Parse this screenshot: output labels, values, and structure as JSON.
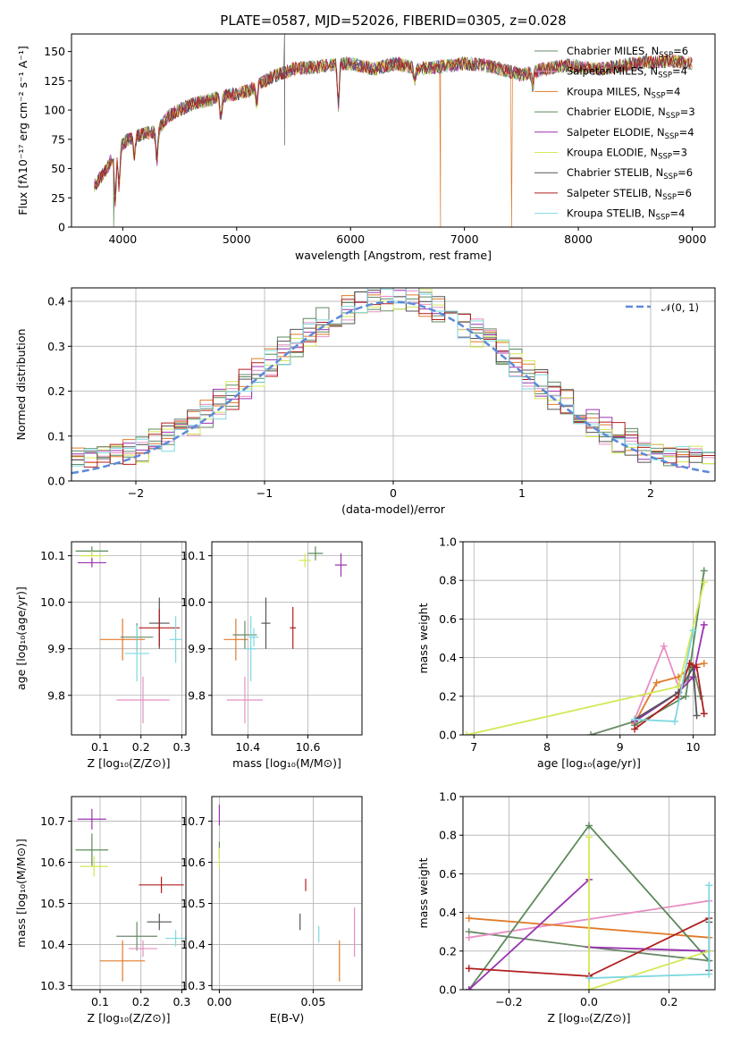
{
  "colors": [
    "#6a8a68",
    "#e78fc4",
    "#e07b2a",
    "#5c8a5c",
    "#9932b0",
    "#d4e857",
    "#555555",
    "#b01e1e",
    "#7fd8e0"
  ],
  "chart_data": [
    {
      "id": "spectrum",
      "type": "line",
      "title": "PLATE=0587, MJD=52026, FIBERID=0305, z=0.028",
      "xlabel": "wavelength [Angstrom, rest frame]",
      "ylabel": "Flux [fλ10⁻¹⁷ erg cm⁻² s⁻¹ A⁻¹]",
      "xlim": [
        3550,
        9200
      ],
      "ylim": [
        0,
        165
      ],
      "xticks": [
        4000,
        5000,
        6000,
        7000,
        8000,
        9000
      ],
      "yticks": [
        0,
        25,
        50,
        75,
        100,
        125,
        150
      ],
      "legend_position": "top-right",
      "series": [
        {
          "name": "Chabrier MILES, N",
          "sub": "SSP",
          "suffix": "=6",
          "color_index": 0
        },
        {
          "name": "Salpeter MILES, N",
          "sub": "SSP",
          "suffix": "=4",
          "color_index": 1
        },
        {
          "name": "Kroupa MILES, N",
          "sub": "SSP",
          "suffix": "=4",
          "color_index": 2
        },
        {
          "name": "Chabrier ELODIE, N",
          "sub": "SSP",
          "suffix": "=3",
          "color_index": 3
        },
        {
          "name": "Salpeter ELODIE, N",
          "sub": "SSP",
          "suffix": "=4",
          "color_index": 4
        },
        {
          "name": "Kroupa ELODIE, N",
          "sub": "SSP",
          "suffix": "=3",
          "color_index": 5
        },
        {
          "name": "Chabrier STELIB, N",
          "sub": "SSP",
          "suffix": "=6",
          "color_index": 6
        },
        {
          "name": "Salpeter STELIB, N",
          "sub": "SSP",
          "suffix": "=6",
          "color_index": 7
        },
        {
          "name": "Kroupa STELIB, N",
          "sub": "SSP",
          "suffix": "=4",
          "color_index": 8
        }
      ],
      "continuum": [
        [
          3750,
          35
        ],
        [
          3850,
          48
        ],
        [
          3950,
          68
        ],
        [
          4100,
          78
        ],
        [
          4300,
          82
        ],
        [
          4400,
          95
        ],
        [
          4600,
          105
        ],
        [
          4900,
          112
        ],
        [
          5100,
          116
        ],
        [
          5300,
          128
        ],
        [
          5500,
          135
        ],
        [
          5800,
          138
        ],
        [
          6000,
          140
        ],
        [
          6200,
          135
        ],
        [
          6400,
          140
        ],
        [
          6600,
          135
        ],
        [
          6800,
          137
        ],
        [
          7000,
          140
        ],
        [
          7200,
          138
        ],
        [
          7500,
          130
        ],
        [
          7700,
          135
        ],
        [
          7900,
          138
        ],
        [
          8200,
          135
        ],
        [
          8500,
          140
        ],
        [
          8800,
          142
        ],
        [
          9000,
          140
        ]
      ],
      "absorption_features": [
        [
          3934,
          42
        ],
        [
          3968,
          35
        ],
        [
          4102,
          20
        ],
        [
          4300,
          25
        ],
        [
          4861,
          18
        ],
        [
          5175,
          15
        ],
        [
          5893,
          35
        ],
        [
          6563,
          10
        ],
        [
          7600,
          12
        ]
      ],
      "drops_to_zero": [
        3920,
        6790,
        7410
      ],
      "spikes": [
        [
          5420,
          70
        ]
      ]
    },
    {
      "id": "residuals",
      "type": "histogram",
      "xlabel": "(data-model)/error",
      "ylabel": "Normed distribution",
      "xlim": [
        -2.5,
        2.5
      ],
      "ylim": [
        0,
        0.43
      ],
      "xticks": [
        -2,
        -1,
        0,
        1,
        2
      ],
      "yticks": [
        0.0,
        0.1,
        0.2,
        0.3,
        0.4
      ],
      "legend_label": "𝒩(0, 1)",
      "legend_color": "#5b8ad8",
      "bin_width": 0.1
    },
    {
      "id": "age_vs_Z",
      "type": "errorbar",
      "xlabel": "Z [log₁₀(Z/Z⊙)]",
      "ylabel": "age  [log₁₀(age/yr)]",
      "xlim": [
        0.03,
        0.31
      ],
      "ylim": [
        9.715,
        10.13
      ],
      "xticks": [
        0.1,
        0.2,
        0.3
      ],
      "yticks": [
        9.8,
        9.9,
        10.0,
        10.1
      ],
      "points": [
        {
          "x": 0.08,
          "y": 10.11,
          "dx": 0.04,
          "dy": 0.01,
          "c": 3
        },
        {
          "x": 0.08,
          "y": 10.1,
          "dx": 0.03,
          "dy": 0.01,
          "c": 5
        },
        {
          "x": 0.08,
          "y": 10.085,
          "dx": 0.035,
          "dy": 0.01,
          "c": 4
        },
        {
          "x": 0.155,
          "y": 9.92,
          "dx": 0.055,
          "dy": 0.045,
          "c": 2
        },
        {
          "x": 0.19,
          "y": 9.925,
          "dx": 0.04,
          "dy": 0.03,
          "c": 0
        },
        {
          "x": 0.19,
          "y": 9.89,
          "dx": 0.03,
          "dy": 0.06,
          "c": 8
        },
        {
          "x": 0.205,
          "y": 9.79,
          "dx": 0.065,
          "dy": 0.05,
          "c": 1
        },
        {
          "x": 0.245,
          "y": 9.955,
          "dx": 0.025,
          "dy": 0.055,
          "c": 6
        },
        {
          "x": 0.245,
          "y": 9.945,
          "dx": 0.05,
          "dy": 0.04,
          "c": 7
        },
        {
          "x": 0.285,
          "y": 9.92,
          "dx": 0.015,
          "dy": 0.05,
          "c": 8
        }
      ]
    },
    {
      "id": "age_vs_mass",
      "type": "errorbar",
      "xlabel": "mass [log₁₀(M/M⊙)]",
      "ylabel": "",
      "xlim": [
        10.28,
        10.78
      ],
      "ylim": [
        9.715,
        10.13
      ],
      "xticks": [
        10.4,
        10.6
      ],
      "yticks": [
        9.8,
        9.9,
        10.0,
        10.1
      ],
      "points": [
        {
          "x": 10.36,
          "y": 9.92,
          "dx": 0.04,
          "dy": 0.045,
          "c": 2
        },
        {
          "x": 10.39,
          "y": 9.93,
          "dx": 0.04,
          "dy": 0.03,
          "c": 0
        },
        {
          "x": 10.41,
          "y": 9.9,
          "dx": 0.02,
          "dy": 0.07,
          "c": 8
        },
        {
          "x": 10.42,
          "y": 9.925,
          "dx": 0.015,
          "dy": 0.02,
          "c": 8
        },
        {
          "x": 10.39,
          "y": 9.79,
          "dx": 0.06,
          "dy": 0.05,
          "c": 1
        },
        {
          "x": 10.46,
          "y": 9.955,
          "dx": 0.015,
          "dy": 0.055,
          "c": 6
        },
        {
          "x": 10.55,
          "y": 9.945,
          "dx": 0.01,
          "dy": 0.045,
          "c": 7
        },
        {
          "x": 10.59,
          "y": 10.09,
          "dx": 0.02,
          "dy": 0.015,
          "c": 5
        },
        {
          "x": 10.625,
          "y": 10.105,
          "dx": 0.025,
          "dy": 0.015,
          "c": 3
        },
        {
          "x": 10.71,
          "y": 10.08,
          "dx": 0.02,
          "dy": 0.025,
          "c": 4
        }
      ]
    },
    {
      "id": "mass_weight_vs_age",
      "type": "line",
      "xlabel": "age  [log₁₀(age/yr)]",
      "ylabel": "mass weight",
      "xlim": [
        6.85,
        10.3
      ],
      "ylim": [
        0,
        1.0
      ],
      "xticks": [
        7,
        8,
        9,
        10
      ],
      "yticks": [
        0.0,
        0.2,
        0.4,
        0.6,
        0.8,
        1.0
      ],
      "series": [
        {
          "c": 0,
          "pts": [
            [
              8.6,
              0
            ],
            [
              9.2,
              0.07
            ],
            [
              9.8,
              0.22
            ],
            [
              10.0,
              0.35
            ],
            [
              10.1,
              0.2
            ]
          ]
        },
        {
          "c": 1,
          "pts": [
            [
              9.2,
              0.08
            ],
            [
              9.6,
              0.46
            ],
            [
              9.8,
              0.25
            ],
            [
              10.0,
              0.3
            ]
          ]
        },
        {
          "c": 2,
          "pts": [
            [
              9.2,
              0.06
            ],
            [
              9.5,
              0.27
            ],
            [
              9.8,
              0.3
            ],
            [
              10.0,
              0.36
            ],
            [
              10.15,
              0.37
            ]
          ]
        },
        {
          "c": 3,
          "pts": [
            [
              9.2,
              0.05
            ],
            [
              9.9,
              0.2
            ],
            [
              10.15,
              0.85
            ]
          ]
        },
        {
          "c": 4,
          "pts": [
            [
              9.2,
              0.07
            ],
            [
              9.8,
              0.22
            ],
            [
              10.0,
              0.3
            ],
            [
              10.15,
              0.57
            ]
          ]
        },
        {
          "c": 5,
          "pts": [
            [
              6.9,
              0
            ],
            [
              9.8,
              0.25
            ],
            [
              10.15,
              0.79
            ]
          ]
        },
        {
          "c": 6,
          "pts": [
            [
              9.2,
              0.08
            ],
            [
              9.8,
              0.22
            ],
            [
              10.0,
              0.35
            ],
            [
              10.05,
              0.1
            ]
          ]
        },
        {
          "c": 7,
          "pts": [
            [
              9.2,
              0.03
            ],
            [
              9.8,
              0.2
            ],
            [
              9.95,
              0.37
            ],
            [
              10.05,
              0.35
            ],
            [
              10.15,
              0.11
            ]
          ]
        },
        {
          "c": 8,
          "pts": [
            [
              9.2,
              0.08
            ],
            [
              9.75,
              0.07
            ],
            [
              10.0,
              0.54
            ]
          ]
        }
      ]
    },
    {
      "id": "mass_vs_Z",
      "type": "errorbar",
      "xlabel": "Z [log₁₀(Z/Z⊙)]",
      "ylabel": "mass [log₁₀(M/M⊙)]",
      "xlim": [
        0.03,
        0.31
      ],
      "ylim": [
        10.29,
        10.76
      ],
      "xticks": [
        0.1,
        0.2,
        0.3
      ],
      "yticks": [
        10.3,
        10.4,
        10.5,
        10.6,
        10.7
      ],
      "points": [
        {
          "x": 0.08,
          "y": 10.705,
          "dx": 0.035,
          "dy": 0.025,
          "c": 4
        },
        {
          "x": 0.08,
          "y": 10.63,
          "dx": 0.04,
          "dy": 0.04,
          "c": 3
        },
        {
          "x": 0.085,
          "y": 10.59,
          "dx": 0.035,
          "dy": 0.025,
          "c": 5
        },
        {
          "x": 0.25,
          "y": 10.545,
          "dx": 0.055,
          "dy": 0.02,
          "c": 7
        },
        {
          "x": 0.245,
          "y": 10.455,
          "dx": 0.03,
          "dy": 0.02,
          "c": 6
        },
        {
          "x": 0.19,
          "y": 10.42,
          "dx": 0.05,
          "dy": 0.035,
          "c": 0
        },
        {
          "x": 0.285,
          "y": 10.415,
          "dx": 0.025,
          "dy": 0.02,
          "c": 8
        },
        {
          "x": 0.205,
          "y": 10.39,
          "dx": 0.035,
          "dy": 0.02,
          "c": 1
        },
        {
          "x": 0.155,
          "y": 10.36,
          "dx": 0.055,
          "dy": 0.05,
          "c": 2
        }
      ]
    },
    {
      "id": "mass_vs_EBV",
      "type": "errorbar",
      "xlabel": "E(B-V)",
      "ylabel": "",
      "xlim": [
        -0.004,
        0.076
      ],
      "ylim": [
        10.29,
        10.76
      ],
      "xticks": [
        0.0,
        0.05
      ],
      "xtick_labels": [
        "0.00",
        "0.05"
      ],
      "yticks": [
        10.3,
        10.4,
        10.5,
        10.6,
        10.7
      ],
      "points": [
        {
          "x": 0.0,
          "y": 10.715,
          "dx": 0,
          "dy": 0.025,
          "c": 4
        },
        {
          "x": 0.0,
          "y": 10.63,
          "dx": 0,
          "dy": 0.02,
          "c": 3
        },
        {
          "x": 0.0,
          "y": 10.61,
          "dx": 0,
          "dy": 0.025,
          "c": 5
        },
        {
          "x": 0.046,
          "y": 10.545,
          "dx": 0,
          "dy": 0.015,
          "c": 7
        },
        {
          "x": 0.043,
          "y": 10.455,
          "dx": 0,
          "dy": 0.02,
          "c": 6
        },
        {
          "x": 0.053,
          "y": 10.425,
          "dx": 0,
          "dy": 0.02,
          "c": 8
        },
        {
          "x": 0.064,
          "y": 10.36,
          "dx": 0,
          "dy": 0.05,
          "c": 2
        },
        {
          "x": 0.072,
          "y": 10.43,
          "dx": 0,
          "dy": 0.06,
          "c": 1
        }
      ]
    },
    {
      "id": "mass_weight_vs_Z",
      "type": "line",
      "xlabel": "Z [log₁₀(Z/Z⊙)]",
      "ylabel": "mass weight",
      "xlim": [
        -0.315,
        0.315
      ],
      "ylim": [
        0,
        1.0
      ],
      "xticks": [
        -0.2,
        0.0,
        0.2
      ],
      "yticks": [
        0.0,
        0.2,
        0.4,
        0.6,
        0.8,
        1.0
      ],
      "series": [
        {
          "c": 0,
          "pts": [
            [
              -0.3,
              0.3
            ],
            [
              0.0,
              0.22
            ],
            [
              0.3,
              0.15
            ]
          ]
        },
        {
          "c": 1,
          "pts": [
            [
              -0.3,
              0.27
            ],
            [
              0.3,
              0.46
            ]
          ]
        },
        {
          "c": 2,
          "pts": [
            [
              -0.3,
              0.37
            ],
            [
              0.3,
              0.27
            ]
          ]
        },
        {
          "c": 3,
          "pts": [
            [
              -0.3,
              0
            ],
            [
              0.0,
              0.85
            ],
            [
              0.3,
              0.15
            ]
          ]
        },
        {
          "c": 4,
          "pts": [
            [
              -0.3,
              0
            ],
            [
              0.0,
              0.57
            ]
          ]
        },
        {
          "c": 4,
          "pts": [
            [
              0.0,
              0.22
            ],
            [
              0.3,
              0.2
            ]
          ]
        },
        {
          "c": 5,
          "pts": [
            [
              0.0,
              0.79
            ],
            [
              0.0,
              0
            ],
            [
              0.3,
              0.2
            ]
          ]
        },
        {
          "c": 6,
          "pts": [
            [
              0.3,
              0.35
            ],
            [
              0.3,
              0.1
            ]
          ]
        },
        {
          "c": 7,
          "pts": [
            [
              -0.3,
              0.11
            ],
            [
              0.0,
              0.07
            ],
            [
              0.3,
              0.37
            ]
          ]
        },
        {
          "c": 8,
          "pts": [
            [
              0.0,
              0.06
            ],
            [
              0.3,
              0.08
            ],
            [
              0.3,
              0.54
            ]
          ]
        }
      ]
    }
  ]
}
